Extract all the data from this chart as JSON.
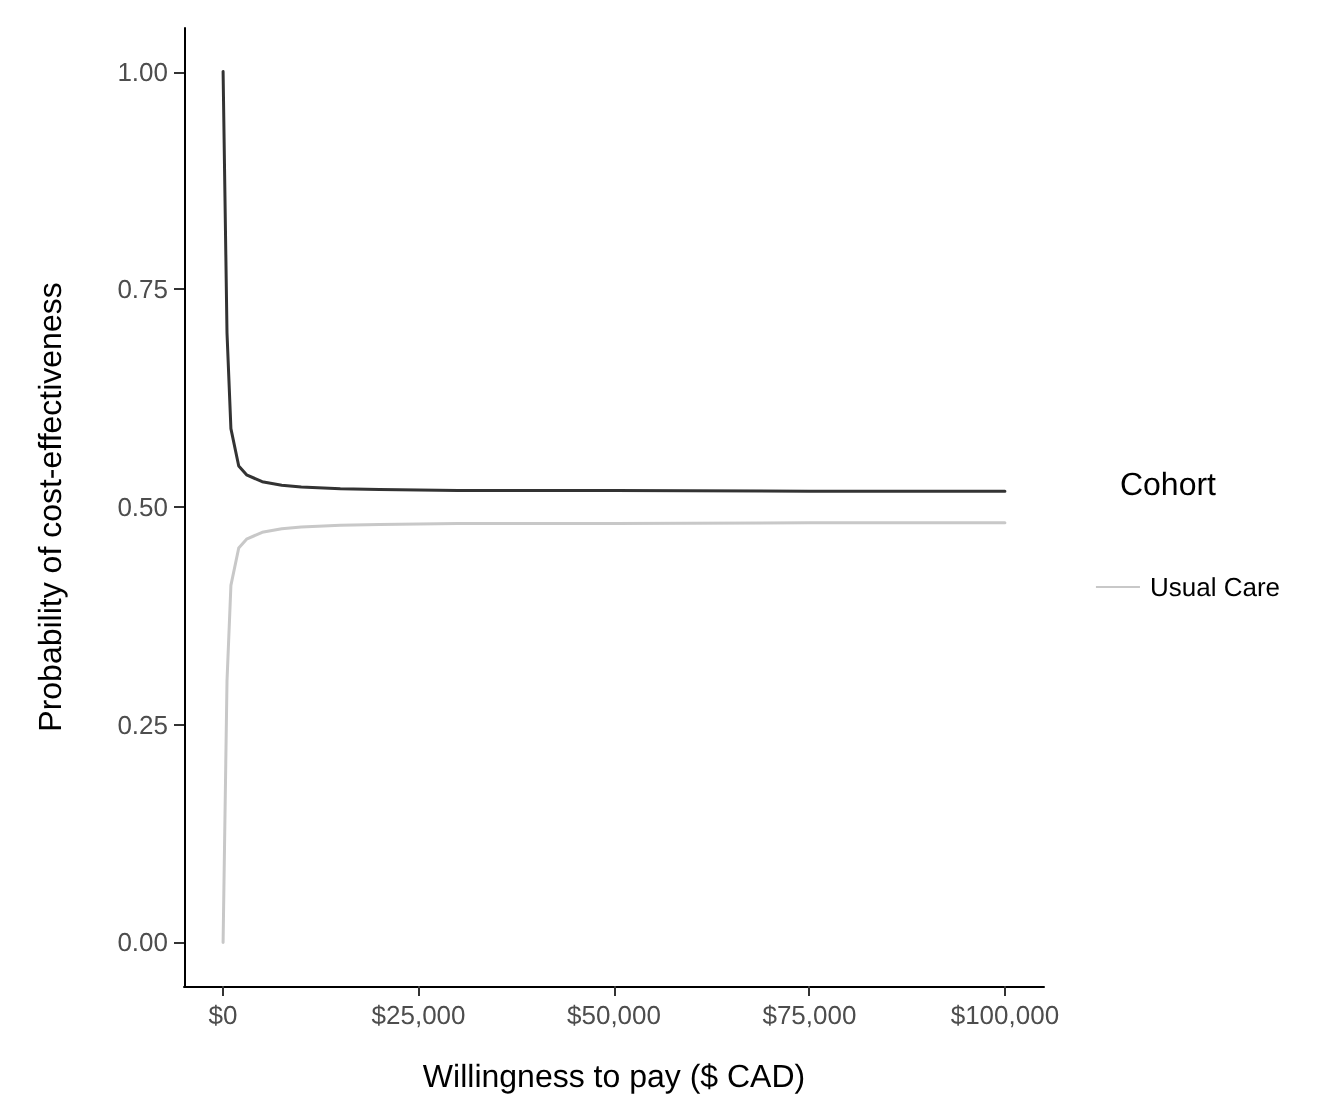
{
  "chart_data": {
    "type": "line",
    "xlabel": "Willingness to pay ($ CAD)",
    "ylabel": "Probability of cost-effectiveness",
    "legend_title": "Cohort",
    "legend": "right",
    "grid": false,
    "x": [
      0,
      500,
      1000,
      2000,
      3000,
      5000,
      7500,
      10000,
      15000,
      20000,
      30000,
      50000,
      75000,
      100000
    ],
    "series": [
      {
        "color": "#333333",
        "values": [
          1.0,
          0.7,
          0.59,
          0.547,
          0.537,
          0.529,
          0.525,
          0.523,
          0.521,
          0.52,
          0.519,
          0.519,
          0.518,
          0.518
        ]
      },
      {
        "name": "Usual Care",
        "color": "#c8c8c8",
        "values": [
          0.0,
          0.3,
          0.41,
          0.453,
          0.463,
          0.471,
          0.475,
          0.477,
          0.479,
          0.48,
          0.481,
          0.481,
          0.482,
          0.482
        ]
      }
    ],
    "xlim": [
      -5000,
      105000
    ],
    "ylim": [
      -0.05,
      1.05
    ],
    "xticks": [
      {
        "value": 0,
        "label": "$0"
      },
      {
        "value": 25000,
        "label": "$25,000"
      },
      {
        "value": 50000,
        "label": "$50,000"
      },
      {
        "value": 75000,
        "label": "$75,000"
      },
      {
        "value": 100000,
        "label": "$100,000"
      }
    ],
    "yticks": [
      {
        "value": 0,
        "label": "0.00"
      },
      {
        "value": 0.25,
        "label": "0.25"
      },
      {
        "value": 0.5,
        "label": "0.50"
      },
      {
        "value": 0.75,
        "label": "0.75"
      },
      {
        "value": 1,
        "label": "1.00"
      }
    ],
    "line_style": "solid",
    "marker": "none"
  }
}
